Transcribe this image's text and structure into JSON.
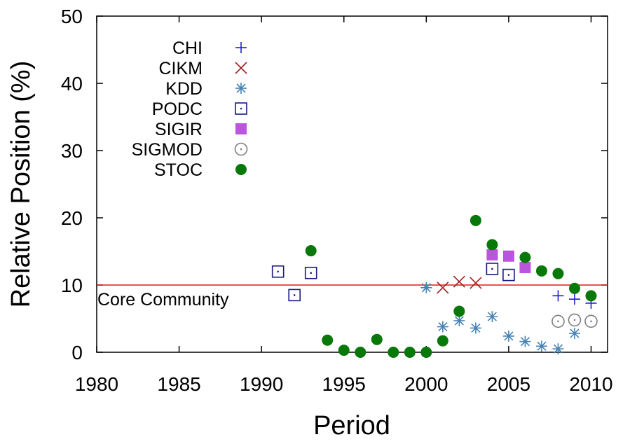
{
  "chart_data": {
    "type": "scatter",
    "xlabel": "Period",
    "ylabel": "Relative Position (%)",
    "xlim": [
      1980,
      2011
    ],
    "ylim": [
      0,
      50
    ],
    "xticks": [
      1980,
      1985,
      1990,
      1995,
      2000,
      2005,
      2010
    ],
    "yticks": [
      0,
      10,
      20,
      30,
      40,
      50
    ],
    "grid": false,
    "legend_position": "top-left",
    "reference_line": {
      "y": 10,
      "label": "Core Community",
      "color": "#e41a1c"
    },
    "series": [
      {
        "name": "CHI",
        "marker": "plus",
        "color": "#1f1fd6",
        "x": [
          2008,
          2009,
          2010
        ],
        "y": [
          8.4,
          7.9,
          7.3
        ]
      },
      {
        "name": "CIKM",
        "marker": "cross",
        "color": "#a11d1d",
        "x": [
          2001,
          2002,
          2003
        ],
        "y": [
          9.6,
          10.5,
          10.3
        ]
      },
      {
        "name": "KDD",
        "marker": "star",
        "color": "#4682b4",
        "x": [
          2000,
          2001,
          2002,
          2003,
          2004,
          2005,
          2006,
          2007,
          2008,
          2009
        ],
        "y": [
          9.6,
          3.8,
          4.7,
          3.6,
          5.3,
          2.4,
          1.6,
          0.9,
          0.5,
          2.8
        ]
      },
      {
        "name": "PODC",
        "marker": "square-dot",
        "color": "#1a1a80",
        "x": [
          1991,
          1992,
          1993,
          2004,
          2005
        ],
        "y": [
          12.0,
          8.5,
          11.8,
          12.4,
          11.5
        ]
      },
      {
        "name": "SIGIR",
        "marker": "filled-square",
        "color": "#bb55dd",
        "x": [
          2004,
          2005,
          2006
        ],
        "y": [
          14.5,
          14.3,
          12.6
        ]
      },
      {
        "name": "SIGMOD",
        "marker": "circle-dot",
        "color": "#808080",
        "x": [
          2008,
          2009,
          2010
        ],
        "y": [
          4.6,
          4.8,
          4.6
        ]
      },
      {
        "name": "STOC",
        "marker": "filled-circle",
        "color": "#087808",
        "x": [
          1993,
          1994,
          1995,
          1996,
          1997,
          1998,
          1999,
          2000,
          2001,
          2002,
          2003,
          2004,
          2006,
          2007,
          2008,
          2009,
          2010
        ],
        "y": [
          15.1,
          1.8,
          0.3,
          0.0,
          1.9,
          0.0,
          0.0,
          0.0,
          1.7,
          6.1,
          19.6,
          16.0,
          14.1,
          12.1,
          11.7,
          9.5,
          8.4
        ]
      }
    ]
  }
}
